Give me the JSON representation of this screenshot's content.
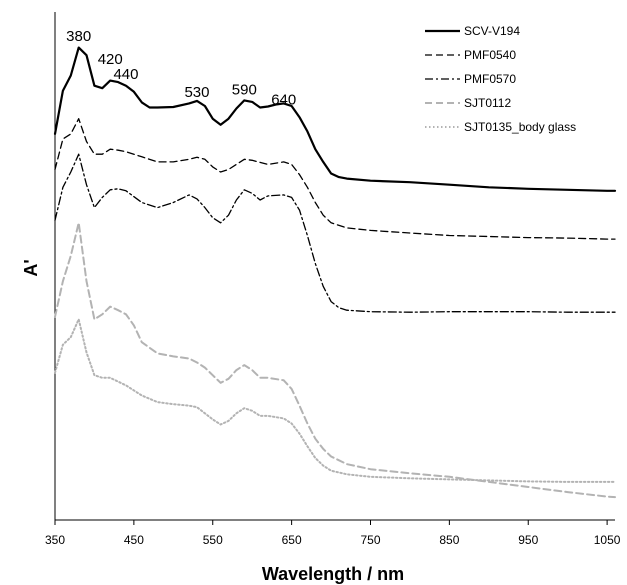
{
  "chart_data": {
    "type": "line",
    "xlabel": "Wavelength / nm",
    "ylabel": "A'",
    "xlim": [
      350,
      1060
    ],
    "x_ticks": [
      350,
      450,
      550,
      650,
      750,
      850,
      950,
      1050
    ],
    "ylim": [
      0,
      1
    ],
    "y_ticks_shown": false,
    "grid": false,
    "legend": "top-right",
    "peak_labels": [
      {
        "text": "380",
        "x": 380,
        "y": 0.935
      },
      {
        "text": "420",
        "x": 420,
        "y": 0.89
      },
      {
        "text": "440",
        "x": 440,
        "y": 0.86
      },
      {
        "text": "530",
        "x": 530,
        "y": 0.825
      },
      {
        "text": "590",
        "x": 590,
        "y": 0.83
      },
      {
        "text": "640",
        "x": 640,
        "y": 0.81
      }
    ],
    "series": [
      {
        "name": "SCV-V194",
        "color": "#000000",
        "dash": "solid",
        "x": [
          350,
          360,
          370,
          380,
          390,
          400,
          410,
          420,
          430,
          440,
          450,
          460,
          470,
          480,
          500,
          520,
          530,
          540,
          550,
          560,
          570,
          580,
          590,
          600,
          610,
          620,
          630,
          640,
          650,
          660,
          670,
          680,
          690,
          700,
          710,
          720,
          750,
          800,
          850,
          900,
          950,
          1000,
          1050,
          1060
        ],
        "y": [
          0.76,
          0.845,
          0.875,
          0.93,
          0.915,
          0.855,
          0.85,
          0.865,
          0.862,
          0.855,
          0.843,
          0.822,
          0.812,
          0.812,
          0.813,
          0.82,
          0.825,
          0.815,
          0.79,
          0.778,
          0.79,
          0.81,
          0.826,
          0.823,
          0.812,
          0.814,
          0.818,
          0.82,
          0.815,
          0.793,
          0.765,
          0.73,
          0.705,
          0.682,
          0.675,
          0.672,
          0.668,
          0.665,
          0.66,
          0.655,
          0.652,
          0.65,
          0.648,
          0.648
        ]
      },
      {
        "name": "PMF0540",
        "color": "#000000",
        "dash": "dashed",
        "x": [
          350,
          360,
          370,
          380,
          390,
          400,
          410,
          420,
          430,
          440,
          460,
          480,
          500,
          520,
          530,
          540,
          550,
          560,
          570,
          590,
          600,
          620,
          640,
          650,
          660,
          670,
          680,
          690,
          700,
          720,
          750,
          800,
          850,
          900,
          950,
          1000,
          1050,
          1060
        ],
        "y": [
          0.69,
          0.75,
          0.76,
          0.79,
          0.745,
          0.72,
          0.72,
          0.73,
          0.728,
          0.725,
          0.715,
          0.705,
          0.705,
          0.71,
          0.714,
          0.71,
          0.695,
          0.685,
          0.69,
          0.71,
          0.708,
          0.7,
          0.705,
          0.7,
          0.68,
          0.655,
          0.625,
          0.6,
          0.585,
          0.575,
          0.57,
          0.565,
          0.56,
          0.558,
          0.556,
          0.555,
          0.553,
          0.553
        ]
      },
      {
        "name": "PMF0570",
        "color": "#000000",
        "dash": "dashdot",
        "x": [
          350,
          360,
          370,
          380,
          390,
          400,
          410,
          420,
          430,
          440,
          460,
          480,
          500,
          520,
          530,
          540,
          550,
          560,
          570,
          580,
          590,
          600,
          610,
          620,
          640,
          650,
          660,
          670,
          680,
          690,
          700,
          710,
          720,
          730,
          750,
          800,
          850,
          900,
          950,
          1000,
          1050,
          1060
        ],
        "y": [
          0.59,
          0.655,
          0.685,
          0.72,
          0.66,
          0.615,
          0.635,
          0.65,
          0.652,
          0.648,
          0.625,
          0.615,
          0.625,
          0.64,
          0.632,
          0.615,
          0.595,
          0.585,
          0.6,
          0.63,
          0.65,
          0.643,
          0.63,
          0.638,
          0.64,
          0.635,
          0.61,
          0.56,
          0.505,
          0.46,
          0.43,
          0.418,
          0.413,
          0.412,
          0.41,
          0.409,
          0.41,
          0.41,
          0.41,
          0.409,
          0.409,
          0.409
        ]
      },
      {
        "name": "SJT0112",
        "color": "#b3b3b3",
        "dash": "dashed",
        "x": [
          350,
          360,
          370,
          380,
          390,
          400,
          410,
          420,
          430,
          440,
          450,
          460,
          480,
          500,
          520,
          530,
          540,
          550,
          560,
          570,
          580,
          590,
          600,
          610,
          620,
          640,
          650,
          660,
          670,
          680,
          690,
          700,
          720,
          750,
          800,
          850,
          900,
          950,
          1000,
          1050,
          1060
        ],
        "y": [
          0.4,
          0.47,
          0.52,
          0.585,
          0.47,
          0.395,
          0.405,
          0.42,
          0.413,
          0.405,
          0.383,
          0.35,
          0.328,
          0.322,
          0.318,
          0.31,
          0.3,
          0.285,
          0.27,
          0.278,
          0.295,
          0.305,
          0.295,
          0.28,
          0.28,
          0.275,
          0.258,
          0.225,
          0.19,
          0.16,
          0.14,
          0.125,
          0.11,
          0.1,
          0.092,
          0.085,
          0.075,
          0.065,
          0.055,
          0.046,
          0.045
        ]
      },
      {
        "name": "SJT0135_body glass",
        "color": "#b3b3b3",
        "dash": "dotted",
        "x": [
          350,
          360,
          370,
          380,
          390,
          400,
          410,
          420,
          440,
          460,
          480,
          500,
          520,
          530,
          540,
          550,
          560,
          570,
          580,
          590,
          600,
          610,
          620,
          640,
          650,
          660,
          670,
          680,
          690,
          700,
          720,
          750,
          800,
          850,
          900,
          950,
          1000,
          1050,
          1060
        ],
        "y": [
          0.29,
          0.345,
          0.36,
          0.395,
          0.33,
          0.285,
          0.28,
          0.28,
          0.265,
          0.245,
          0.232,
          0.228,
          0.225,
          0.222,
          0.21,
          0.198,
          0.188,
          0.195,
          0.21,
          0.22,
          0.215,
          0.205,
          0.205,
          0.2,
          0.19,
          0.17,
          0.145,
          0.122,
          0.107,
          0.097,
          0.09,
          0.085,
          0.082,
          0.08,
          0.078,
          0.076,
          0.075,
          0.075,
          0.075
        ]
      }
    ]
  }
}
